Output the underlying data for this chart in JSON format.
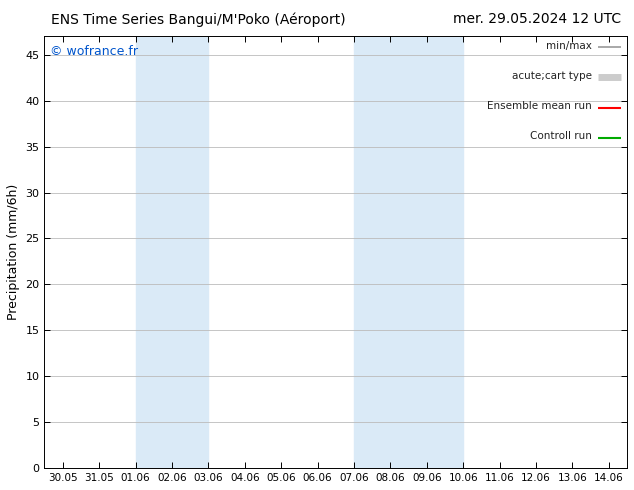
{
  "title_left": "ENS Time Series Bangui/M'Poko (Aéroport)",
  "title_right": "mer. 29.05.2024 12 UTC",
  "ylabel": "Precipitation (mm/6h)",
  "watermark": "© wofrance.fr",
  "watermark_color": "#0055cc",
  "ylim_min": 0,
  "ylim_max": 47,
  "yticks": [
    0,
    5,
    10,
    15,
    20,
    25,
    30,
    35,
    40,
    45
  ],
  "xtick_labels": [
    "30.05",
    "31.05",
    "01.06",
    "02.06",
    "03.06",
    "04.06",
    "05.06",
    "06.06",
    "07.06",
    "08.06",
    "09.06",
    "10.06",
    "11.06",
    "12.06",
    "13.06",
    "14.06"
  ],
  "xtick_positions": [
    0,
    1,
    2,
    3,
    4,
    5,
    6,
    7,
    8,
    9,
    10,
    11,
    12,
    13,
    14,
    15
  ],
  "shaded_regions": [
    {
      "x_start": 2,
      "x_end": 4,
      "color": "#daeaf7"
    },
    {
      "x_start": 8,
      "x_end": 11,
      "color": "#daeaf7"
    }
  ],
  "legend_entries": [
    {
      "label": "min/max",
      "color": "#999999",
      "lw": 1.2
    },
    {
      "label": "acute;cart type",
      "color": "#cccccc",
      "lw": 5
    },
    {
      "label": "Ensemble mean run",
      "color": "#ff0000",
      "lw": 1.5
    },
    {
      "label": "Controll run",
      "color": "#00aa00",
      "lw": 1.5
    }
  ],
  "bg_color": "#ffffff",
  "grid_color": "#bbbbbb",
  "title_fontsize": 10,
  "axis_label_fontsize": 9,
  "tick_fontsize": 8,
  "legend_fontsize": 7.5,
  "watermark_fontsize": 9
}
